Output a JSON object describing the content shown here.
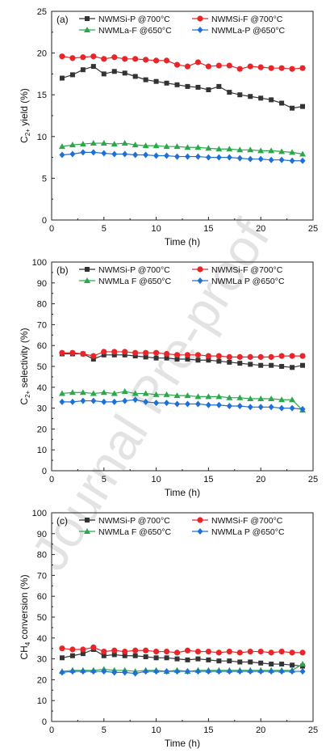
{
  "watermark": {
    "text": "Journal Pre-proof",
    "color": "#d8d8d8"
  },
  "chart_data": [
    {
      "type": "line",
      "panel_label": "(a)",
      "xlabel": "Time (h)",
      "ylabel_main": "C",
      "ylabel_sub": "2+",
      "ylabel_rest": " yield (%)",
      "xlim": [
        0,
        25
      ],
      "ylim": [
        0,
        25
      ],
      "xticks": [
        0,
        5,
        10,
        15,
        20,
        25
      ],
      "yticks": [
        0,
        5,
        10,
        15,
        20,
        25
      ],
      "grid": false,
      "legend": "top, two columns",
      "x": [
        1,
        2,
        3,
        4,
        5,
        6,
        7,
        8,
        9,
        10,
        11,
        12,
        13,
        14,
        15,
        16,
        17,
        18,
        19,
        20,
        21,
        22,
        23,
        24
      ],
      "series": [
        {
          "name": "NWMSi-P @700°C",
          "marker": "square",
          "color": "#333333",
          "values": [
            17.0,
            17.4,
            18.0,
            18.4,
            17.5,
            17.8,
            17.6,
            17.2,
            16.8,
            16.6,
            16.4,
            16.2,
            16.0,
            15.9,
            15.6,
            16.0,
            15.3,
            15.0,
            14.8,
            14.6,
            14.4,
            14.0,
            13.4,
            13.6
          ]
        },
        {
          "name": "NWMSi-F @700°C",
          "marker": "circle",
          "color": "#e8262a",
          "values": [
            19.6,
            19.4,
            19.5,
            19.6,
            19.3,
            19.5,
            19.3,
            19.3,
            19.2,
            19.1,
            19.1,
            18.6,
            18.4,
            18.9,
            18.4,
            18.5,
            18.5,
            18.1,
            18.4,
            18.3,
            18.2,
            18.2,
            18.1,
            18.2
          ]
        },
        {
          "name": "NWMLa-F @650°C",
          "marker": "triangle",
          "color": "#2aa84a",
          "values": [
            8.8,
            9.0,
            9.1,
            9.2,
            9.2,
            9.1,
            9.2,
            9.0,
            8.9,
            8.9,
            8.8,
            8.8,
            8.7,
            8.7,
            8.6,
            8.5,
            8.5,
            8.4,
            8.4,
            8.3,
            8.3,
            8.2,
            8.1,
            7.9
          ]
        },
        {
          "name": "NWMLa-P @650°C",
          "marker": "diamond",
          "color": "#1f6fd6",
          "values": [
            7.8,
            7.9,
            8.1,
            8.1,
            8.0,
            7.9,
            7.9,
            7.8,
            7.8,
            7.7,
            7.7,
            7.6,
            7.6,
            7.6,
            7.5,
            7.5,
            7.5,
            7.4,
            7.3,
            7.3,
            7.2,
            7.2,
            7.1,
            7.1
          ]
        }
      ]
    },
    {
      "type": "line",
      "panel_label": "(b)",
      "xlabel": "Time (h)",
      "ylabel_main": "C",
      "ylabel_sub": "2+",
      "ylabel_rest": " selectivity (%)",
      "xlim": [
        0,
        25
      ],
      "ylim": [
        0,
        100
      ],
      "xticks": [
        0,
        5,
        10,
        15,
        20,
        25
      ],
      "yticks": [
        0,
        10,
        20,
        30,
        40,
        50,
        60,
        70,
        80,
        90,
        100
      ],
      "grid": false,
      "legend": "top, two columns",
      "x": [
        1,
        2,
        3,
        4,
        5,
        6,
        7,
        8,
        9,
        10,
        11,
        12,
        13,
        14,
        15,
        16,
        17,
        18,
        19,
        20,
        21,
        22,
        23,
        24
      ],
      "series": [
        {
          "name": "NWMSi-P @700°C",
          "marker": "square",
          "color": "#333333",
          "values": [
            56.0,
            56.0,
            56.0,
            53.5,
            55.5,
            55.5,
            55.5,
            55.0,
            54.5,
            54.0,
            54.0,
            53.5,
            53.5,
            53.0,
            53.0,
            52.5,
            52.0,
            51.5,
            51.0,
            50.5,
            50.5,
            50.0,
            49.5,
            50.5
          ]
        },
        {
          "name": "NWMSi-F @700°C",
          "marker": "circle",
          "color": "#e8262a",
          "values": [
            56.5,
            56.5,
            56.0,
            55.0,
            57.0,
            57.0,
            57.0,
            56.5,
            56.5,
            56.5,
            56.0,
            55.5,
            55.5,
            55.5,
            55.0,
            55.0,
            54.5,
            54.5,
            54.5,
            54.5,
            54.5,
            55.0,
            55.0,
            55.0
          ]
        },
        {
          "name": "NWMLa F @650°C",
          "marker": "triangle",
          "color": "#2aa84a",
          "values": [
            37.0,
            37.5,
            37.5,
            37.0,
            37.5,
            37.0,
            38.0,
            37.0,
            37.0,
            36.5,
            36.5,
            36.0,
            36.0,
            35.5,
            35.5,
            35.5,
            35.0,
            35.0,
            34.5,
            34.5,
            34.5,
            34.0,
            34.0,
            29.0
          ]
        },
        {
          "name": "NWMLa P @650°C",
          "marker": "diamond",
          "color": "#1f6fd6",
          "values": [
            33.0,
            33.0,
            33.5,
            33.5,
            33.0,
            33.0,
            33.5,
            34.0,
            33.0,
            32.5,
            32.5,
            32.0,
            32.0,
            32.0,
            31.5,
            31.5,
            31.0,
            31.0,
            30.5,
            30.5,
            30.5,
            30.0,
            30.0,
            29.5
          ]
        }
      ]
    },
    {
      "type": "line",
      "panel_label": "(c)",
      "xlabel": "Time (h)",
      "ylabel_main": "CH",
      "ylabel_sub": "4",
      "ylabel_rest": " conversion (%)",
      "xlim": [
        0,
        25
      ],
      "ylim": [
        0,
        100
      ],
      "xticks": [
        0,
        5,
        10,
        15,
        20,
        25
      ],
      "yticks": [
        0,
        10,
        20,
        30,
        40,
        50,
        60,
        70,
        80,
        90,
        100
      ],
      "grid": false,
      "legend": "top, two columns",
      "x": [
        1,
        2,
        3,
        4,
        5,
        6,
        7,
        8,
        9,
        10,
        11,
        12,
        13,
        14,
        15,
        16,
        17,
        18,
        19,
        20,
        21,
        22,
        23,
        24
      ],
      "series": [
        {
          "name": "NWMSi-P @700°C",
          "marker": "square",
          "color": "#333333",
          "values": [
            30.5,
            31.5,
            32.5,
            34.5,
            31.5,
            32.0,
            31.5,
            31.5,
            31.0,
            30.5,
            30.5,
            30.0,
            29.5,
            30.0,
            29.5,
            29.0,
            29.0,
            28.5,
            28.5,
            28.0,
            27.5,
            27.5,
            27.0,
            26.5
          ]
        },
        {
          "name": "NWMSi-F @700°C",
          "marker": "circle",
          "color": "#e8262a",
          "values": [
            35.0,
            34.5,
            34.5,
            35.5,
            33.5,
            34.0,
            33.5,
            34.0,
            34.0,
            33.5,
            33.5,
            33.0,
            34.0,
            33.5,
            33.5,
            33.0,
            33.5,
            33.0,
            33.5,
            33.5,
            33.0,
            33.5,
            33.0,
            33.0
          ]
        },
        {
          "name": "NWMLa F @650°C",
          "marker": "triangle",
          "color": "#2aa84a",
          "values": [
            24.0,
            24.5,
            24.5,
            24.5,
            25.0,
            24.5,
            24.5,
            24.0,
            24.5,
            24.5,
            24.0,
            24.5,
            24.0,
            24.5,
            24.5,
            24.5,
            24.5,
            24.5,
            24.5,
            24.5,
            24.5,
            24.5,
            24.5,
            27.5
          ]
        },
        {
          "name": "NWMLa P @650°C",
          "marker": "diamond",
          "color": "#1f6fd6",
          "values": [
            23.5,
            24.0,
            24.0,
            24.0,
            24.0,
            23.5,
            23.5,
            23.0,
            24.0,
            24.0,
            24.0,
            24.0,
            24.0,
            24.0,
            24.0,
            24.0,
            24.0,
            24.0,
            24.0,
            24.0,
            24.0,
            24.0,
            24.0,
            24.0
          ]
        }
      ]
    }
  ]
}
